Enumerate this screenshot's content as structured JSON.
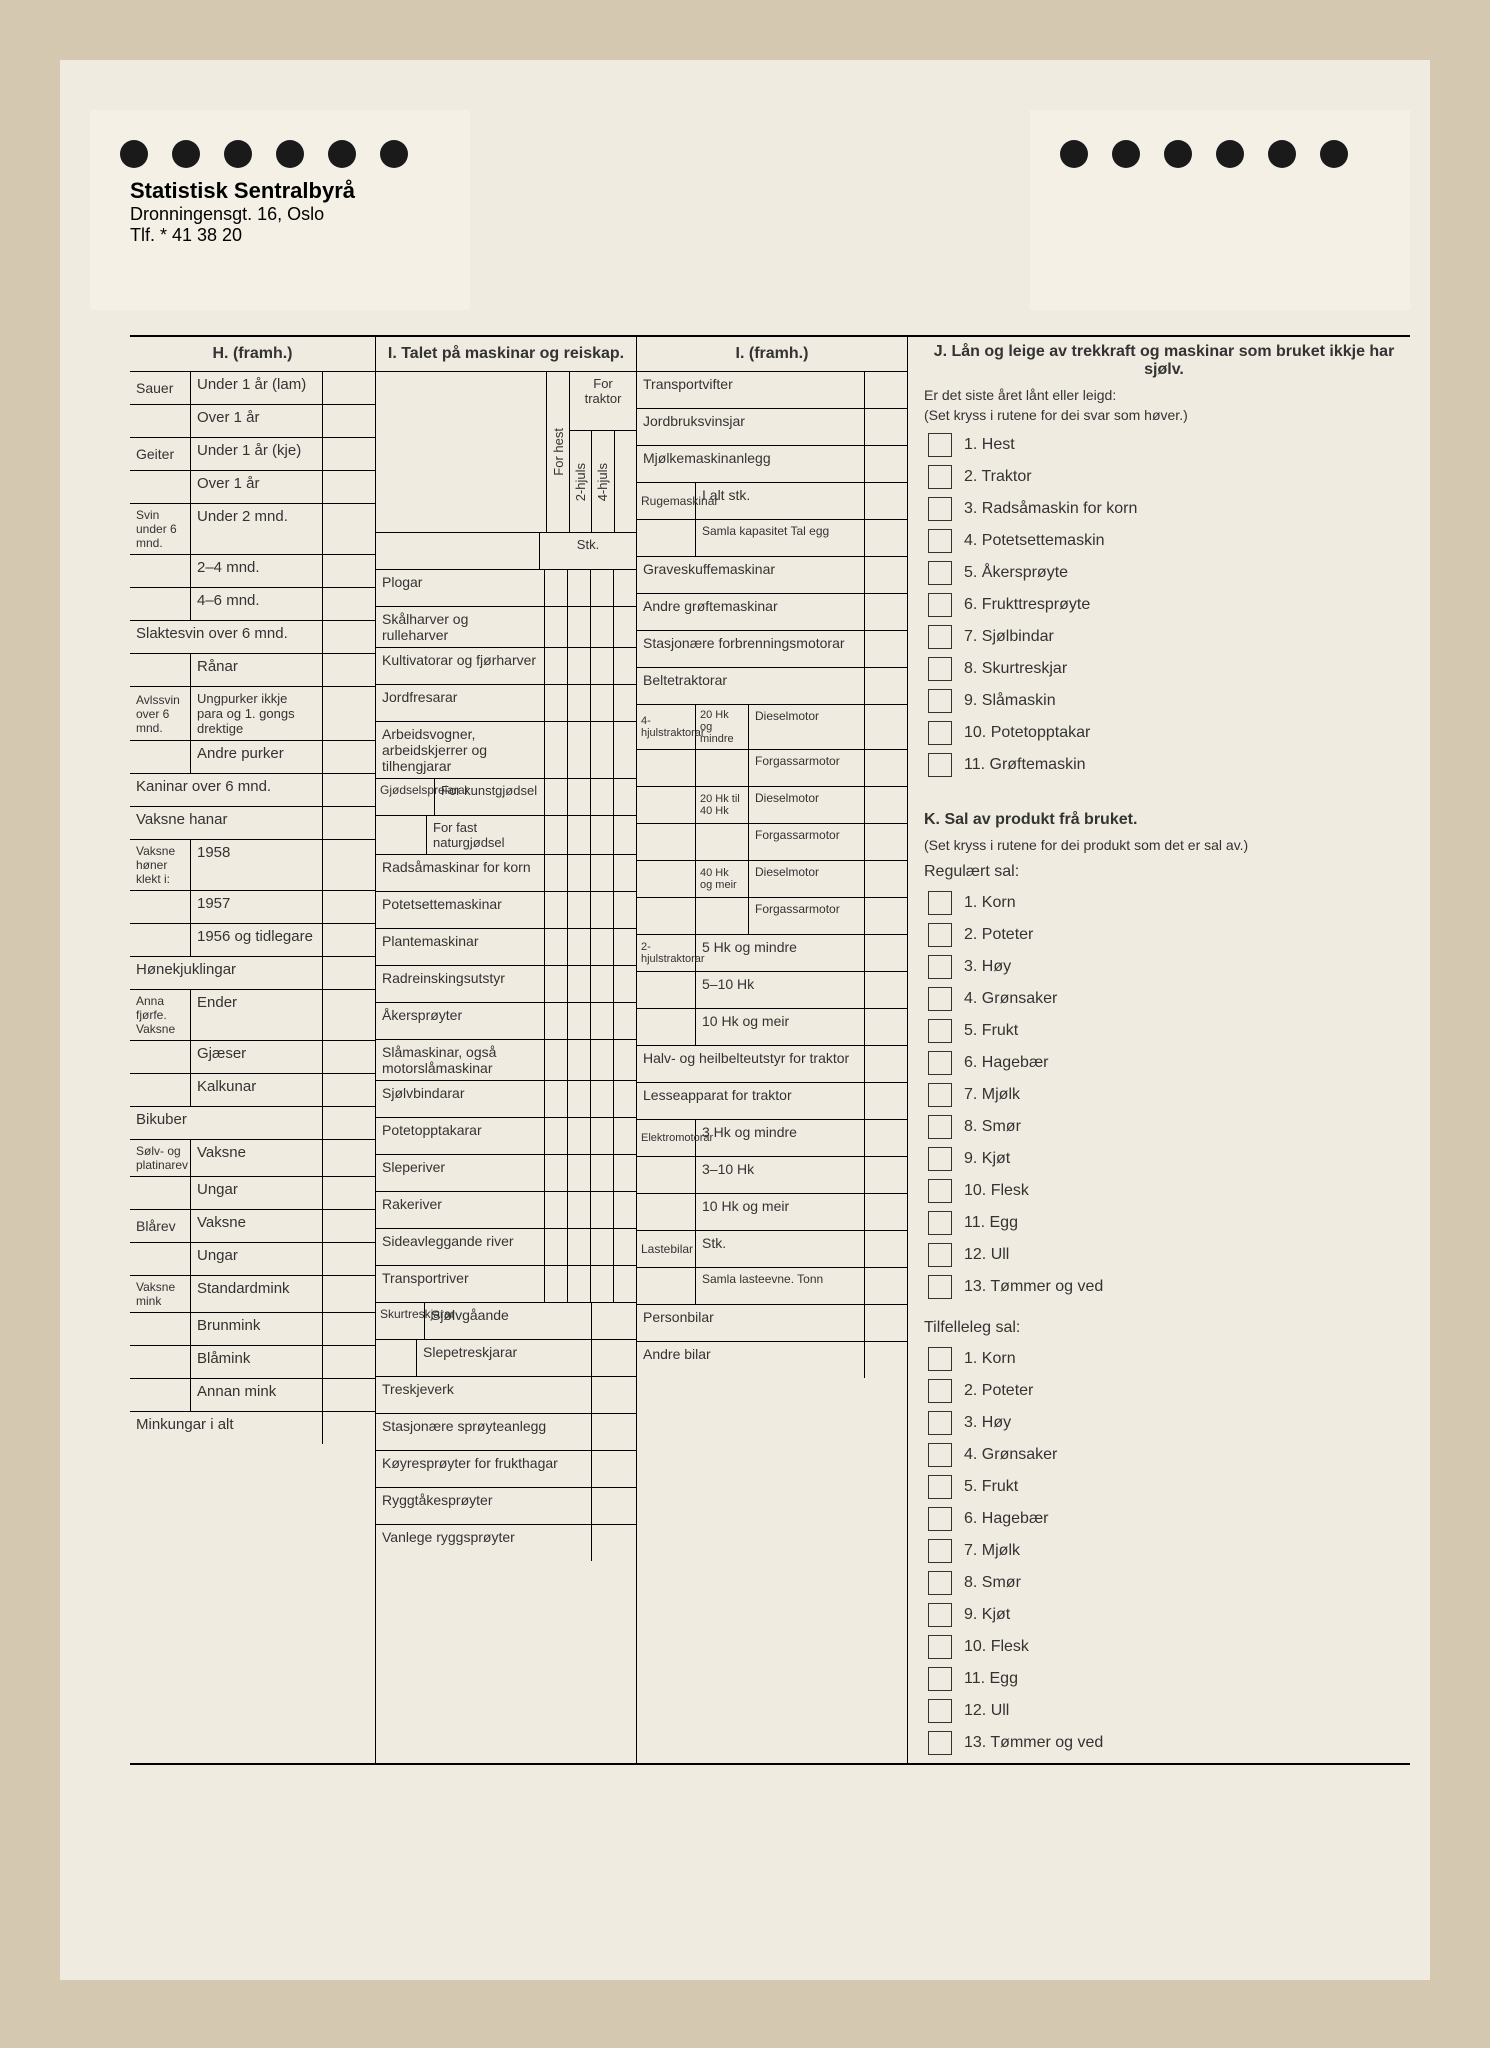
{
  "org": {
    "name": "Statistisk Sentralbyrå",
    "address": "Dronningensgt. 16, Oslo",
    "phone": "Tlf. * 41 38 20"
  },
  "H": {
    "title": "H. (framh.)",
    "sauer": "Sauer",
    "sauer_u1": "Under 1 år (lam)",
    "sauer_o1": "Over 1 år",
    "geiter": "Geiter",
    "geiter_u1": "Under 1 år (kje)",
    "geiter_o1": "Over 1 år",
    "svin": "Svin under 6 mnd.",
    "svin_u2": "Under 2 mnd.",
    "svin_24": "2–4 mnd.",
    "svin_46": "4–6 mnd.",
    "slaktesvin": "Slaktesvin over 6 mnd.",
    "ranar": "Rånar",
    "avlssvin": "Avlssvin over 6 mnd.",
    "ungpurker": "Ungpurker ikkje para og 1. gongs drektige",
    "andre_purker": "Andre purker",
    "kaninar": "Kaninar over 6 mnd.",
    "vaksne_hanar": "Vaksne hanar",
    "honer": "Vaksne høner klekt i:",
    "h1958": "1958",
    "h1957": "1957",
    "h1956": "1956 og tidlegare",
    "honekjuklingar": "Hønekjuklingar",
    "anna_fjorfe": "Anna fjørfe. Vaksne",
    "ender": "Ender",
    "gjaeser": "Gjæser",
    "kalkunar": "Kalkunar",
    "bikuber": "Bikuber",
    "solvrev": "Sølv- og platinarev",
    "blarev": "Blårev",
    "vaksne": "Vaksne",
    "ungar": "Ungar",
    "mink": "Vaksne mink",
    "standardmink": "Standardmink",
    "brunmink": "Brunmink",
    "blamink": "Blåmink",
    "annanmink": "Annan mink",
    "minkungar": "Minkungar i alt"
  },
  "I": {
    "title": "I. Talet på maskinar og reiskap.",
    "for_traktor": "For traktor",
    "for_hest": "For hest",
    "hjuls2": "2-hjuls",
    "hjuls4": "4-hjuls",
    "stk": "Stk.",
    "plogar": "Plogar",
    "skalharver": "Skålharver og rulleharver",
    "kultivatorar": "Kultivatorar og fjørharver",
    "jordfresarar": "Jordfresarar",
    "arbeidsvogner": "Arbeidsvogner, arbeidskjerrer og tilhengjarar",
    "gjodsel": "Gjødselspreiarar",
    "for_kunst": "For kunstgjødsel",
    "for_fast": "For fast naturgjødsel",
    "radsaa": "Radsåmaskinar for korn",
    "potetsette": "Potetsettemaskinar",
    "plante": "Plantemaskinar",
    "radreinsk": "Radreinskingsutstyr",
    "akersproyter": "Åkersprøyter",
    "slamaskinar": "Slåmaskinar, også motorslåmaskinar",
    "sjolvbindarar": "Sjølvbindarar",
    "potetopp": "Potetopptakarar",
    "sleperiver": "Sleperiver",
    "rakeriver": "Rakeriver",
    "sideavlegg": "Sideavleggande river",
    "transportriver": "Transportriver",
    "skurtres": "Skurtreskjarar",
    "sjolvgaande": "Sjølvgåande",
    "slepetres": "Slepetreskjarar",
    "treskjeverk": "Treskjeverk",
    "stasjonaere_sproy": "Stasjonære sprøyteanlegg",
    "koyresproyter": "Køyresprøyter for frukthagar",
    "ryggtake": "Ryggtåkesprøyter",
    "vanlege_rygg": "Vanlege ryggsprøyter"
  },
  "I2": {
    "title": "I. (framh.)",
    "transportvifter": "Transportvifter",
    "jordbruksvinsjar": "Jordbruksvinsjar",
    "mjolke": "Mjølkemaskinanlegg",
    "ruge": "Rugemaskinar",
    "ialt": "I alt stk.",
    "samla": "Samla kapasitet Tal egg",
    "graveskuffe": "Graveskuffemaskinar",
    "andre_grofte": "Andre grøftemaskinar",
    "stasjonaere_forbr": "Stasjonære forbrenningsmotorar",
    "beltetraktorar": "Beltetraktorar",
    "trak4": "4-hjulstraktorar",
    "hk20m": "20 Hk og mindre",
    "hk2040": "20 Hk til 40 Hk",
    "hk40m": "40 Hk og meir",
    "diesel": "Dieselmotor",
    "forgassar": "Forgassarmotor",
    "trak2": "2-hjulstraktorar",
    "hk5m": "5 Hk og mindre",
    "hk510": "5–10 Hk",
    "hk10m": "10 Hk og meir",
    "halvbelte": "Halv- og heilbelteutstyr for traktor",
    "lesseapp": "Lesseapparat for traktor",
    "elektro": "Elektromotorar",
    "hk3m": "3 Hk og mindre",
    "hk310": "3–10 Hk",
    "lastebilar": "Lastebilar",
    "stk2": "Stk.",
    "samla_last": "Samla lasteevne. Tonn",
    "personbilar": "Personbilar",
    "andre_bilar": "Andre bilar"
  },
  "J": {
    "title": "J. Lån og leige av trekkraft og maskinar som bruket ikkje har sjølv.",
    "lead": "Er det siste året lånt eller leigd:",
    "note": "(Set kryss i rutene for dei svar som høver.)",
    "items": [
      "1. Hest",
      "2. Traktor",
      "3. Radsåmaskin for korn",
      "4. Potetsettemaskin",
      "5. Åkersprøyte",
      "6. Frukttresprøyte",
      "7. Sjølbindar",
      "8. Skurtreskjar",
      "9. Slåmaskin",
      "10. Potetopptakar",
      "11. Grøftemaskin"
    ]
  },
  "K": {
    "title": "K. Sal av produkt frå bruket.",
    "note": "(Set kryss i rutene for dei produkt som det er sal av.)",
    "reg": "Regulært sal:",
    "reg_items": [
      "1. Korn",
      "2. Poteter",
      "3. Høy",
      "4. Grønsaker",
      "5. Frukt",
      "6. Hagebær",
      "7. Mjølk",
      "8. Smør",
      "9. Kjøt",
      "10. Flesk",
      "11. Egg",
      "12. Ull",
      "13. Tømmer og ved"
    ],
    "til": "Tilfelleleg sal:",
    "til_items": [
      "1. Korn",
      "2. Poteter",
      "3. Høy",
      "4. Grønsaker",
      "5. Frukt",
      "6. Hagebær",
      "7. Mjølk",
      "8. Smør",
      "9. Kjøt",
      "10. Flesk",
      "11. Egg",
      "12. Ull",
      "13. Tømmer og ved"
    ]
  }
}
